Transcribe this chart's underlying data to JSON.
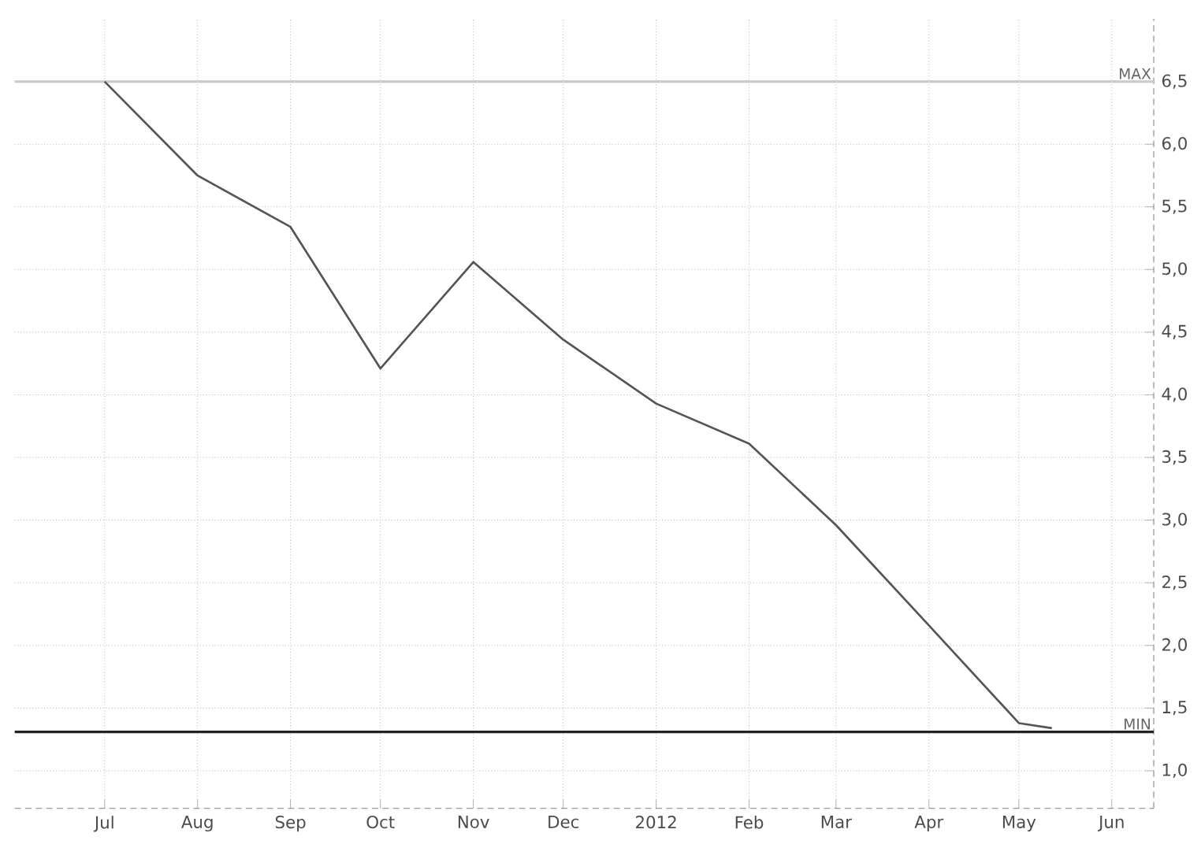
{
  "chart_data": {
    "type": "line",
    "x": [
      "2011-07-01",
      "2011-08-01",
      "2011-09-01",
      "2011-10-01",
      "2011-11-01",
      "2011-12-01",
      "2012-01-01",
      "2012-02-01",
      "2012-03-01",
      "2012-04-01",
      "2012-05-01",
      "2012-05-12"
    ],
    "values": [
      6.5,
      5.75,
      5.34,
      4.21,
      5.06,
      4.44,
      3.93,
      3.61,
      2.96,
      2.16,
      1.38,
      1.34
    ],
    "color": "#555555",
    "xlim": [
      "2011-06-01",
      "2012-06-15"
    ],
    "xticks": [
      {
        "value": "2011-07-01",
        "label": "Jul"
      },
      {
        "value": "2011-08-01",
        "label": "Aug"
      },
      {
        "value": "2011-09-01",
        "label": "Sep"
      },
      {
        "value": "2011-10-01",
        "label": "Oct"
      },
      {
        "value": "2011-11-01",
        "label": "Nov"
      },
      {
        "value": "2011-12-01",
        "label": "Dec"
      },
      {
        "value": "2012-01-01",
        "label": "2012"
      },
      {
        "value": "2012-02-01",
        "label": "Feb"
      },
      {
        "value": "2012-03-01",
        "label": "Mar"
      },
      {
        "value": "2012-04-01",
        "label": "Apr"
      },
      {
        "value": "2012-05-01",
        "label": "May"
      },
      {
        "value": "2012-06-01",
        "label": "Jun"
      }
    ],
    "ylim": [
      0.7,
      7.0
    ],
    "yticks": [
      {
        "value": 1.0,
        "label": "1,0"
      },
      {
        "value": 1.5,
        "label": "1,5"
      },
      {
        "value": 2.0,
        "label": "2,0"
      },
      {
        "value": 2.5,
        "label": "2,5"
      },
      {
        "value": 3.0,
        "label": "3,0"
      },
      {
        "value": 3.5,
        "label": "3,5"
      },
      {
        "value": 4.0,
        "label": "4,0"
      },
      {
        "value": 4.5,
        "label": "4,5"
      },
      {
        "value": 5.0,
        "label": "5,0"
      },
      {
        "value": 5.5,
        "label": "5,5"
      },
      {
        "value": 6.0,
        "label": "6,0"
      },
      {
        "value": 6.5,
        "label": "6,5"
      }
    ],
    "ref_lines": [
      {
        "axis": "y",
        "value": 6.5,
        "label": "MAX",
        "color": "#cccccc"
      },
      {
        "axis": "y",
        "value": 1.31,
        "label": "MIN",
        "color": "#222222"
      }
    ],
    "grid": true,
    "line_style": "solid",
    "marker": "none"
  }
}
